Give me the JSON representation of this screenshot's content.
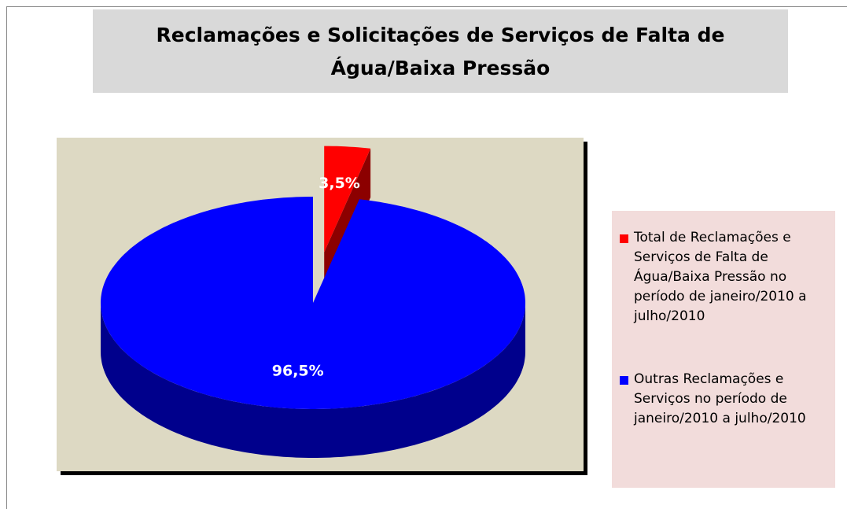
{
  "chart_data": {
    "type": "pie",
    "title": "Reclamações e Solicitações de Serviços de Falta de Água/Baixa Pressão",
    "categories": [
      "Total de Reclamações e Serviços de Falta de Água/Baixa Pressão no período de janeiro/2010 a julho/2010",
      "Outras Reclamações e Serviços no período de janeiro/2010 a julho/2010"
    ],
    "values": [
      3.5,
      96.5
    ],
    "value_labels": [
      "3,5%",
      "96,5%"
    ],
    "colors": [
      "#ff0000",
      "#0000ff"
    ],
    "legend": "right"
  }
}
